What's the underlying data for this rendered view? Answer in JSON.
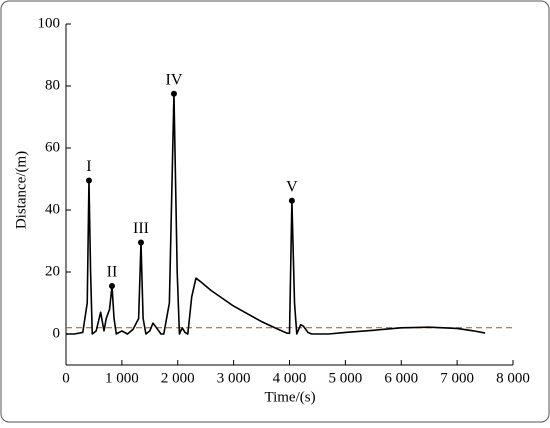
{
  "chart_data": {
    "type": "line",
    "x_label": "Time/(s)",
    "y_label": "Distance/(m)",
    "xlim": [
      0,
      8000
    ],
    "ylim": [
      -10,
      100
    ],
    "xticks": [
      0,
      {
        "value": 1000,
        "label": "1 000"
      },
      {
        "value": 2000,
        "label": "2 000"
      },
      {
        "value": 3000,
        "label": "3 000"
      },
      {
        "value": 4000,
        "label": "4 000"
      },
      {
        "value": 5000,
        "label": "5 000"
      },
      {
        "value": 6000,
        "label": "6 000"
      },
      {
        "value": 7000,
        "label": "7 000"
      },
      {
        "value": 8000,
        "label": "8 000"
      }
    ],
    "yticks": [
      0,
      20,
      40,
      60,
      80,
      100
    ],
    "series": [
      {
        "color": "#000000",
        "x": [
          0,
          150,
          300,
          380,
          411,
          440,
          470,
          540,
          620,
          680,
          720,
          780,
          823,
          860,
          900,
          1000,
          1100,
          1200,
          1300,
          1342,
          1380,
          1430,
          1500,
          1556,
          1620,
          1700,
          1750,
          1850,
          1932,
          1990,
          2030,
          2080,
          2130,
          2180,
          2250,
          2326,
          2400,
          2600,
          2800,
          3000,
          3200,
          3500,
          3800,
          3950,
          4000,
          4043,
          4090,
          4130,
          4200,
          4250,
          4330,
          4400,
          4700,
          5000,
          5500,
          6000,
          6500,
          7000,
          7300,
          7500
        ],
        "values": [
          0,
          0,
          0.5,
          10,
          49.5,
          20,
          0,
          1,
          7,
          1,
          5,
          8,
          15.5,
          5,
          0,
          1,
          0,
          1.5,
          5,
          29.5,
          5,
          0,
          1,
          3.5,
          2,
          0,
          0,
          10,
          77.5,
          20,
          0,
          2,
          0.5,
          0,
          12,
          18,
          17,
          14,
          11.5,
          9,
          7,
          4,
          1.5,
          0.3,
          0.2,
          43,
          10,
          0,
          3,
          2.5,
          0.5,
          0,
          0,
          0.5,
          1.2,
          2,
          2.2,
          1.8,
          1,
          0.3
        ]
      }
    ],
    "threshold": {
      "value": 2,
      "color": "#a0522d"
    },
    "annotations": [
      {
        "label": "I",
        "x": 411,
        "y": 49.5
      },
      {
        "label": "II",
        "x": 823,
        "y": 15.5
      },
      {
        "label": "III",
        "x": 1342,
        "y": 29.5
      },
      {
        "label": "IV",
        "x": 1932,
        "y": 77.5
      },
      {
        "label": "V",
        "x": 4043,
        "y": 43
      }
    ]
  }
}
